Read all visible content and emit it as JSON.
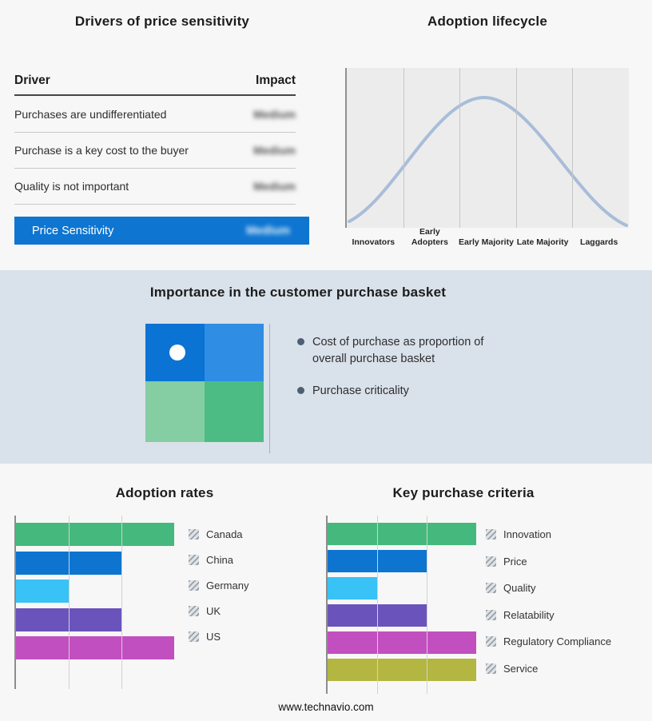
{
  "footer": {
    "text": "www.technavio.com"
  },
  "drivers_panel": {
    "title": "Drivers of price sensitivity",
    "columns": {
      "driver": "Driver",
      "impact": "Impact"
    },
    "rows": [
      {
        "driver": "Purchases are undifferentiated",
        "impact": "Medium"
      },
      {
        "driver": "Purchase is a key cost to the buyer",
        "impact": "Medium"
      },
      {
        "driver": "Quality is not important",
        "impact": "Medium"
      }
    ],
    "summary": {
      "label": "Price Sensitivity",
      "impact": "Medium",
      "bar_color": "#0e75d1"
    }
  },
  "lifecycle_panel": {
    "title": "Adoption lifecycle",
    "stages": [
      "Innovators",
      "Early Adopters",
      "Early Majority",
      "Late Majority",
      "Laggards"
    ],
    "curve_color": "#a8bdd8"
  },
  "basket_panel": {
    "title": "Importance in the customer purchase basket",
    "bullets": [
      "Cost of purchase as proportion of overall purchase basket",
      "Purchase criticality"
    ],
    "quadrant_colors": {
      "top_left": "#0a73d4",
      "top_right": "#2f8de4",
      "bottom_left": "#85cda3",
      "bottom_right": "#4cbc84"
    },
    "dot_color": "#ffffff"
  },
  "chart_data": [
    {
      "type": "bar",
      "orientation": "horizontal",
      "title": "Adoption rates",
      "categories": [
        "Canada",
        "China",
        "Germany",
        "UK",
        "US"
      ],
      "values": [
        3,
        2,
        1,
        2,
        3
      ],
      "colors": [
        "#45b97d",
        "#0d74d0",
        "#38c2f5",
        "#6a54bc",
        "#c24fc0"
      ],
      "xlim": [
        0,
        3.2
      ],
      "note": "No numeric axis labels shown; values estimated in gridline units",
      "legend_position": "right",
      "grid": true
    },
    {
      "type": "bar",
      "orientation": "horizontal",
      "title": "Key purchase criteria",
      "categories": [
        "Innovation",
        "Price",
        "Quality",
        "Relatability",
        "Regulatory Compliance",
        "Service"
      ],
      "values": [
        3,
        2,
        1,
        2,
        3,
        3
      ],
      "colors": [
        "#45b97d",
        "#0d74d0",
        "#38c2f5",
        "#6a54bc",
        "#c24fc0",
        "#b4b642"
      ],
      "xlim": [
        0,
        3.2
      ],
      "note": "No numeric axis labels shown; values estimated in gridline units",
      "legend_position": "right",
      "grid": true
    },
    {
      "type": "line",
      "title": "Adoption lifecycle",
      "x_categories": [
        "Innovators",
        "Early Adopters",
        "Early Majority",
        "Late Majority",
        "Laggards"
      ],
      "shape": "bell curve peaking over Early Majority",
      "y_axis_shown": false,
      "grid": true
    }
  ]
}
